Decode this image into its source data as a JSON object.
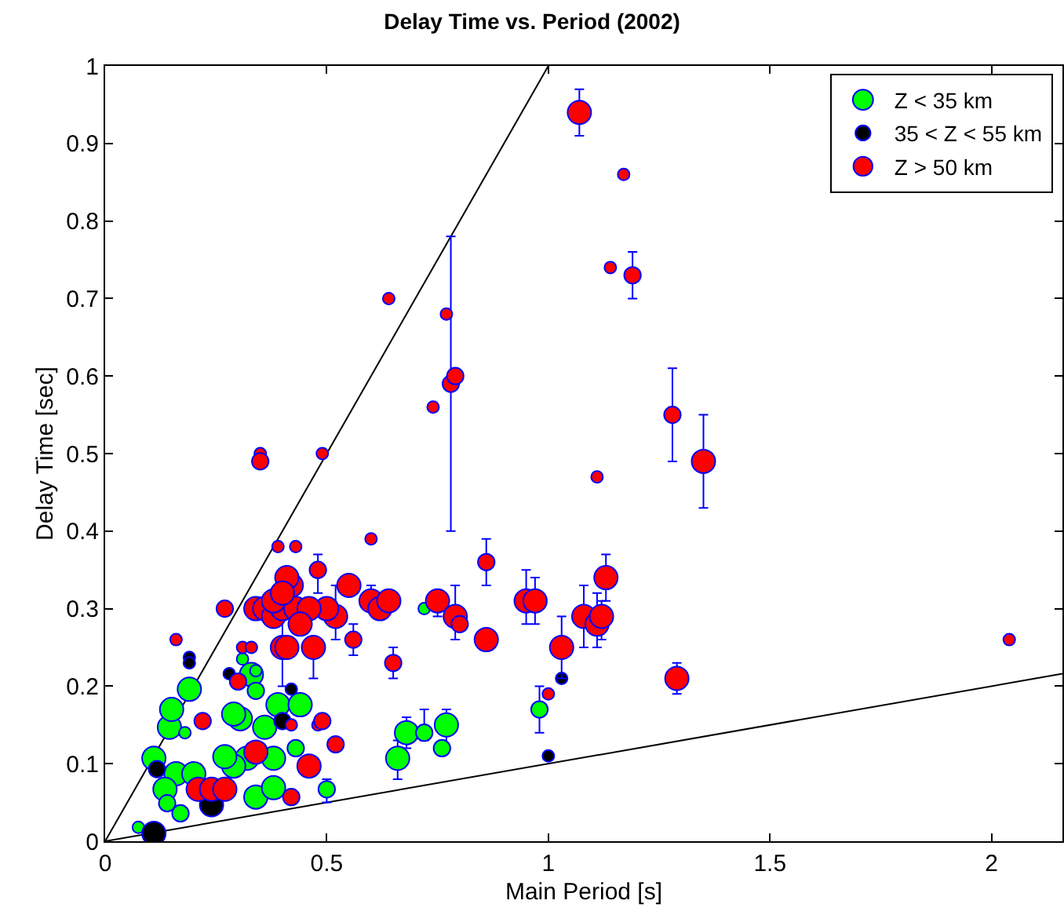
{
  "chart_data": {
    "type": "bubble",
    "title": "Delay Time vs. Period (2002)",
    "xlabel": "Main Period [s]",
    "ylabel": "Delay Time [sec]",
    "xlim": [
      0,
      2.16
    ],
    "xticks": [
      0,
      0.5,
      1,
      1.5,
      2
    ],
    "ylim": [
      0,
      1
    ],
    "yticks": [
      0,
      0.1,
      0.2,
      0.3,
      0.4,
      0.5,
      0.6,
      0.7,
      0.8,
      0.9,
      1
    ],
    "grid": false,
    "legend": "top right",
    "marker": "circle",
    "series": [
      {
        "name": "Z < 35 km",
        "color": "#00ff00",
        "x": [
          0.19,
          0.145,
          0.15,
          0.11,
          0.16,
          0.135,
          0.305,
          0.33,
          0.34,
          0.29,
          0.39,
          0.44,
          0.36,
          0.32,
          0.29,
          0.27,
          0.38,
          0.43,
          0.34,
          0.38,
          0.5,
          0.2,
          0.14,
          0.17,
          0.075,
          0.66,
          0.68,
          0.31,
          0.34,
          0.18,
          0.72,
          0.77,
          0.76,
          0.98,
          0.72
        ],
        "values": [
          0.196,
          0.147,
          0.17,
          0.107,
          0.087,
          0.067,
          0.158,
          0.215,
          0.194,
          0.164,
          0.176,
          0.176,
          0.147,
          0.107,
          0.097,
          0.109,
          0.107,
          0.12,
          0.057,
          0.069,
          0.067,
          0.087,
          0.049,
          0.036,
          0.018,
          0.107,
          0.14,
          0.235,
          0.22,
          0.14,
          0.14,
          0.15,
          0.12,
          0.17,
          0.3
        ],
        "sizes": [
          1,
          1,
          1,
          1,
          1,
          1,
          1,
          1,
          0.5,
          1,
          1,
          1,
          1,
          1,
          1,
          1,
          1,
          0.5,
          1,
          1,
          0.5,
          1,
          0.5,
          0.5,
          0.25,
          1,
          1,
          0.25,
          0.25,
          0.25,
          0.5,
          1,
          0.5,
          0.5,
          0.25
        ],
        "errors": [
          null,
          null,
          null,
          null,
          null,
          null,
          null,
          null,
          null,
          null,
          null,
          null,
          null,
          null,
          null,
          null,
          null,
          null,
          null,
          null,
          [
            0.05,
            0.08
          ],
          null,
          null,
          null,
          null,
          [
            0.08,
            0.13
          ],
          [
            0.12,
            0.16
          ],
          null,
          null,
          null,
          [
            0.13,
            0.17
          ],
          [
            0.12,
            0.17
          ],
          null,
          [
            0.14,
            0.2
          ],
          null
        ]
      },
      {
        "name": "35 < Z < 55 km",
        "color": "#000000",
        "x": [
          0.11,
          0.24,
          0.19,
          0.28,
          0.42,
          0.4,
          0.117,
          1.03,
          1.0,
          0.19
        ],
        "values": [
          0.01,
          0.047,
          0.237,
          0.216,
          0.196,
          0.155,
          0.093,
          0.21,
          0.11,
          0.23
        ],
        "sizes": [
          1,
          1,
          0.25,
          0.25,
          0.25,
          0.5,
          0.5,
          0.25,
          0.25,
          0.25
        ],
        "errors": [
          null,
          null,
          null,
          null,
          null,
          null,
          null,
          null,
          null,
          null
        ]
      },
      {
        "name": "Z > 50 km",
        "color": "#ff0000",
        "x": [
          1.07,
          1.17,
          1.14,
          1.19,
          0.64,
          0.77,
          0.74,
          0.78,
          0.79,
          1.28,
          1.35,
          1.11,
          0.35,
          0.35,
          0.49,
          0.6,
          0.39,
          0.43,
          0.86,
          1.13,
          0.48,
          0.95,
          0.97,
          0.75,
          0.79,
          0.8,
          1.08,
          1.11,
          1.12,
          1.03,
          0.86,
          1.29,
          2.04,
          1.0,
          0.65,
          0.56,
          0.6,
          0.62,
          0.64,
          0.55,
          0.52,
          0.5,
          0.47,
          0.34,
          0.36,
          0.38,
          0.4,
          0.42,
          0.41,
          0.43,
          0.46,
          0.4,
          0.41,
          0.44,
          0.38,
          0.4,
          0.27,
          0.16,
          0.31,
          0.33,
          0.42,
          0.48,
          0.34,
          0.46,
          0.21,
          0.24,
          0.27,
          0.42,
          0.52,
          0.49,
          0.3,
          0.22
        ],
        "values": [
          0.94,
          0.86,
          0.74,
          0.73,
          0.7,
          0.68,
          0.56,
          0.59,
          0.6,
          0.55,
          0.49,
          0.47,
          0.5,
          0.49,
          0.5,
          0.39,
          0.38,
          0.38,
          0.36,
          0.34,
          0.35,
          0.31,
          0.31,
          0.31,
          0.29,
          0.28,
          0.29,
          0.28,
          0.29,
          0.25,
          0.26,
          0.21,
          0.26,
          0.19,
          0.23,
          0.26,
          0.31,
          0.3,
          0.31,
          0.33,
          0.29,
          0.3,
          0.25,
          0.3,
          0.3,
          0.29,
          0.3,
          0.33,
          0.34,
          0.3,
          0.3,
          0.25,
          0.25,
          0.28,
          0.31,
          0.32,
          0.3,
          0.26,
          0.25,
          0.25,
          0.15,
          0.15,
          0.115,
          0.097,
          0.067,
          0.067,
          0.067,
          0.057,
          0.125,
          0.155,
          0.206,
          0.155
        ],
        "sizes": [
          1,
          0.25,
          0.25,
          0.5,
          0.25,
          0.25,
          0.25,
          0.5,
          0.5,
          0.5,
          1,
          0.25,
          0.25,
          0.5,
          0.25,
          0.25,
          0.25,
          0.25,
          0.5,
          1,
          0.5,
          1,
          1,
          1,
          1,
          0.5,
          1,
          1,
          1,
          1,
          1,
          1,
          0.25,
          0.25,
          0.5,
          0.5,
          1,
          1,
          1,
          1,
          1,
          1,
          1,
          1,
          1,
          1,
          1,
          1,
          1,
          1,
          1,
          1,
          1,
          1,
          1,
          1,
          0.5,
          0.25,
          0.25,
          0.25,
          0.25,
          0.25,
          1,
          1,
          1,
          1,
          1,
          0.5,
          0.5,
          0.5,
          0.5,
          0.5
        ],
        "errors": [
          [
            0.91,
            0.97
          ],
          null,
          null,
          [
            0.7,
            0.76
          ],
          null,
          null,
          null,
          [
            0.4,
            0.78
          ],
          null,
          [
            0.49,
            0.61
          ],
          [
            0.43,
            0.55
          ],
          null,
          null,
          null,
          null,
          null,
          null,
          null,
          [
            0.33,
            0.39
          ],
          [
            0.31,
            0.37
          ],
          [
            0.32,
            0.37
          ],
          [
            0.28,
            0.35
          ],
          [
            0.28,
            0.34
          ],
          [
            0.29,
            0.32
          ],
          [
            0.26,
            0.33
          ],
          null,
          [
            0.25,
            0.33
          ],
          [
            0.25,
            0.32
          ],
          [
            0.26,
            0.31
          ],
          [
            0.21,
            0.29
          ],
          null,
          [
            0.19,
            0.23
          ],
          null,
          null,
          [
            0.21,
            0.25
          ],
          [
            0.24,
            0.28
          ],
          [
            0.3,
            0.33
          ],
          null,
          null,
          null,
          [
            0.26,
            0.33
          ],
          null,
          [
            0.21,
            0.25
          ],
          null,
          null,
          null,
          null,
          null,
          null,
          null,
          null,
          [
            0.2,
            0.3
          ],
          null,
          null,
          null,
          null,
          null,
          null,
          null,
          null,
          null,
          null,
          null,
          null,
          null,
          null,
          null,
          null,
          null,
          null,
          null,
          null
        ]
      },
      {
        "type": "line",
        "marker": "none",
        "color": "#000000",
        "x": [
          0,
          1
        ],
        "values": [
          0,
          1
        ]
      },
      {
        "type": "line",
        "marker": "none",
        "color": "#000000",
        "x": [
          0,
          2.16
        ],
        "values": [
          0,
          0.216
        ]
      }
    ]
  }
}
